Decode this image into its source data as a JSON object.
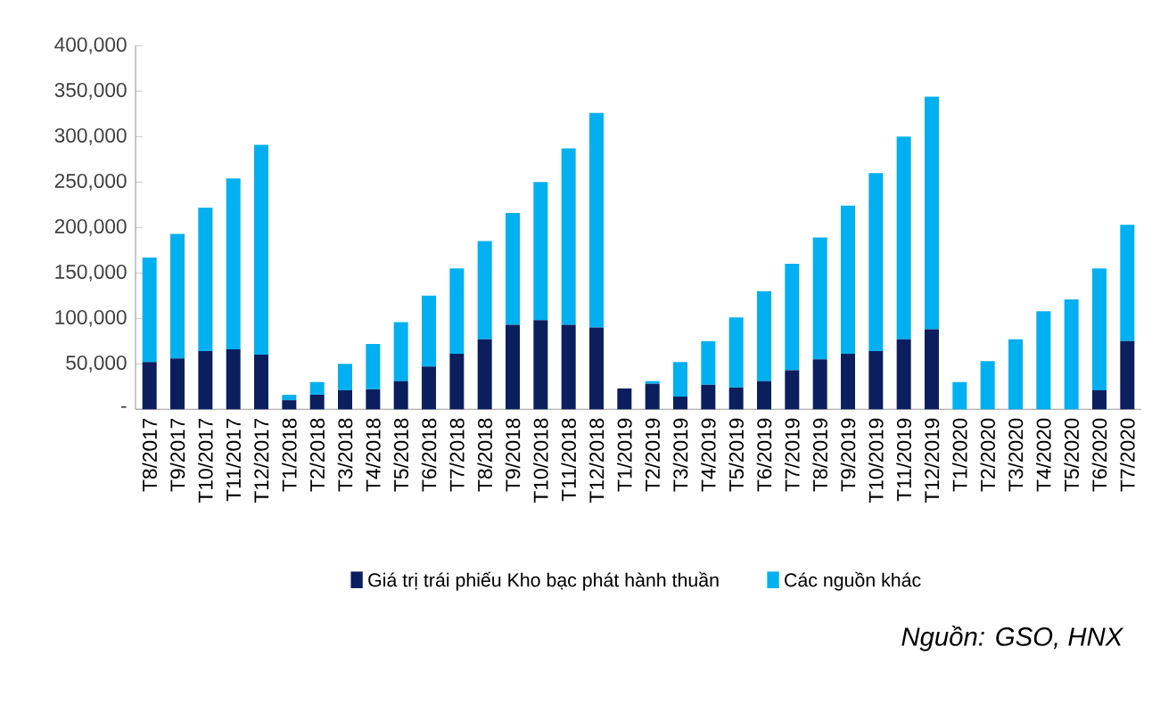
{
  "chart_data": {
    "type": "bar",
    "stacked": true,
    "categories": [
      "T8/2017",
      "T9/2017",
      "T10/2017",
      "T11/2017",
      "T12/2017",
      "T1/2018",
      "T2/2018",
      "T3/2018",
      "T4/2018",
      "T5/2018",
      "T6/2018",
      "T7/2018",
      "T8/2018",
      "T9/2018",
      "T10/2018",
      "T11/2018",
      "T12/2018",
      "T1/2019",
      "T2/2019",
      "T3/2019",
      "T4/2019",
      "T5/2019",
      "T6/2019",
      "T7/2019",
      "T8/2019",
      "T9/2019",
      "T10/2019",
      "T11/2019",
      "T12/2019",
      "T1/2020",
      "T2/2020",
      "T3/2020",
      "T4/2020",
      "T5/2020",
      "T6/2020",
      "T7/2020"
    ],
    "series": [
      {
        "name": "Giá trị trái phiếu Kho bạc phát hành thuần",
        "color": "#0b1f5e",
        "values": [
          52000,
          56000,
          64000,
          66000,
          60000,
          10000,
          16000,
          21000,
          22000,
          31000,
          47000,
          61000,
          77000,
          93000,
          98000,
          93000,
          90000,
          23000,
          28000,
          14000,
          27000,
          24000,
          31000,
          43000,
          55000,
          61000,
          64000,
          77000,
          88000,
          0,
          0,
          0,
          0,
          0,
          21000,
          75000
        ]
      },
      {
        "name": "Các nguồn khác",
        "color": "#00b0f0",
        "values": [
          115000,
          137000,
          158000,
          188000,
          231000,
          6000,
          14000,
          29000,
          50000,
          65000,
          78000,
          94000,
          108000,
          123000,
          152000,
          194000,
          236000,
          0,
          3000,
          38000,
          48000,
          77000,
          99000,
          117000,
          134000,
          163000,
          196000,
          223000,
          256000,
          30000,
          53000,
          77000,
          108000,
          121000,
          134000,
          128000
        ]
      }
    ],
    "ylim": [
      0,
      400000
    ],
    "yticks": [
      {
        "value": 0,
        "label": "-"
      },
      {
        "value": 50000,
        "label": "50,000"
      },
      {
        "value": 100000,
        "label": "100,000"
      },
      {
        "value": 150000,
        "label": "150,000"
      },
      {
        "value": 200000,
        "label": "200,000"
      },
      {
        "value": 250000,
        "label": "250,000"
      },
      {
        "value": 300000,
        "label": "300,000"
      },
      {
        "value": 350000,
        "label": "350,000"
      },
      {
        "value": 400000,
        "label": "400,000"
      }
    ],
    "legend": "bottom",
    "annotations": [
      "Nguồn: GSO, HNX"
    ]
  }
}
